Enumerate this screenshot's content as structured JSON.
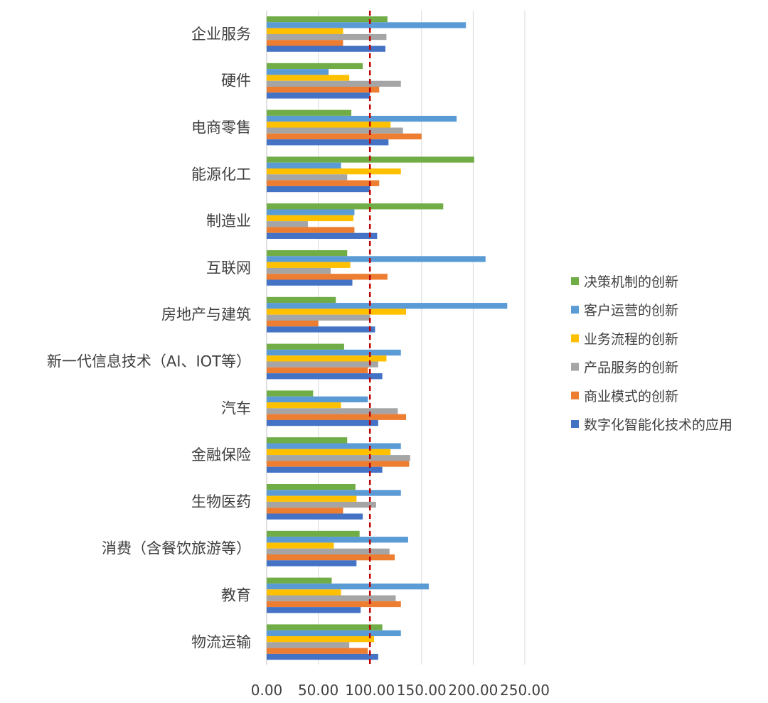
{
  "chart_data": {
    "type": "bar",
    "orientation": "horizontal",
    "categories": [
      "企业服务",
      "硬件",
      "电商零售",
      "能源化工",
      "制造业",
      "互联网",
      "房地产与建筑",
      "新一代信息技术（AI、IOT等）",
      "汽车",
      "金融保险",
      "生物医药",
      "消费（含餐饮旅游等）",
      "教育",
      "物流运输"
    ],
    "series": [
      {
        "name": "决策机制的创新",
        "color": "#70AD47",
        "values": [
          117,
          93,
          82,
          201,
          171,
          78,
          67,
          75,
          45,
          78,
          86,
          90,
          63,
          112
        ]
      },
      {
        "name": "客户运营的创新",
        "color": "#5B9BD5",
        "values": [
          193,
          60,
          184,
          72,
          85,
          212,
          233,
          130,
          98,
          130,
          130,
          137,
          157,
          130
        ]
      },
      {
        "name": "业务流程的创新",
        "color": "#FFC000",
        "values": [
          74,
          80,
          120,
          130,
          84,
          81,
          135,
          116,
          72,
          120,
          87,
          65,
          72,
          104
        ]
      },
      {
        "name": "产品服务的创新",
        "color": "#A5A5A5",
        "values": [
          116,
          130,
          132,
          78,
          40,
          62,
          100,
          108,
          127,
          139,
          106,
          119,
          125,
          80
        ]
      },
      {
        "name": "商业模式的创新",
        "color": "#ED7D31",
        "values": [
          74,
          109,
          150,
          109,
          85,
          117,
          50,
          98,
          135,
          138,
          74,
          124,
          130,
          98
        ]
      },
      {
        "name": "数字化智能化技术的应用",
        "color": "#4472C4",
        "values": [
          115,
          100,
          118,
          100,
          107,
          83,
          105,
          112,
          108,
          112,
          93,
          87,
          91,
          108
        ]
      }
    ],
    "xlim": [
      0,
      250
    ],
    "xticks": [
      "0.00",
      "50.00",
      "100.00",
      "150.00",
      "200.00",
      "250.00"
    ],
    "reference_line": {
      "value": 100,
      "color": "#C00000",
      "style": "dashed"
    },
    "grid": true,
    "legend": "right"
  }
}
